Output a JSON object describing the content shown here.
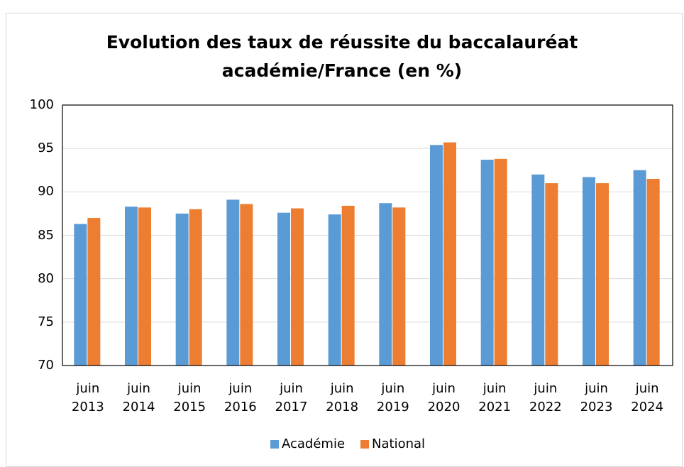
{
  "chart_data": {
    "type": "bar",
    "title": "Evolution des taux de réussite du baccalauréat\nacadémie/France (en %)",
    "categories": [
      "juin\n2013",
      "juin\n2014",
      "juin\n2015",
      "juin\n2016",
      "juin\n2017",
      "juin\n2018",
      "juin\n2019",
      "juin\n2020",
      "juin\n2021",
      "juin\n2022",
      "juin\n2023",
      "juin\n2024"
    ],
    "series": [
      {
        "name": "Académie",
        "color": "#5b9bd5",
        "values": [
          86.3,
          88.3,
          87.5,
          89.1,
          87.6,
          87.4,
          88.7,
          95.4,
          93.7,
          92.0,
          91.7,
          92.5
        ]
      },
      {
        "name": "National",
        "color": "#ed7d31",
        "values": [
          87.0,
          88.2,
          88.0,
          88.6,
          88.1,
          88.4,
          88.2,
          95.7,
          93.8,
          91.0,
          91.0,
          91.5
        ]
      }
    ],
    "ylim": [
      70,
      100
    ],
    "yticks": [
      70,
      75,
      80,
      85,
      90,
      95,
      100
    ],
    "grid": true,
    "legend": "bottom"
  }
}
